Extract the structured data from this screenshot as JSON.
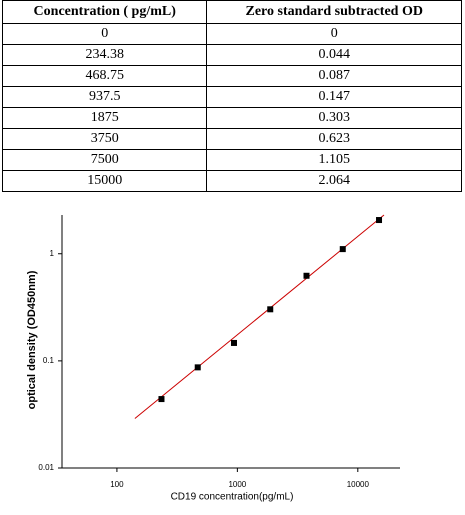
{
  "table": {
    "header": [
      "Concentration ( pg/mL)",
      "Zero standard subtracted OD"
    ],
    "rows": [
      [
        0,
        0
      ],
      [
        234.38,
        0.044
      ],
      [
        468.75,
        0.087
      ],
      [
        937.5,
        0.147
      ],
      [
        1875,
        0.303
      ],
      [
        3750,
        0.623
      ],
      [
        7500,
        1.105
      ],
      [
        15000,
        2.064
      ]
    ]
  },
  "chart_data": {
    "type": "scatter",
    "x_label": "CD19  concentration(pg/mL)",
    "y_label": "optical density (OD450nm)",
    "x": [
      234.38,
      468.75,
      937.5,
      1875,
      3750,
      7500,
      15000
    ],
    "values": [
      0.044,
      0.087,
      0.147,
      0.303,
      0.623,
      1.105,
      2.064
    ],
    "color": "#000000",
    "fit_line": {
      "x": [
        141,
        16500
      ],
      "values": [
        0.029,
        2.3
      ],
      "color": "#cc0000"
    },
    "log_x": true,
    "log_y": true,
    "xlim": [
      35,
      22400
    ],
    "ylim": [
      0.01,
      2.3
    ],
    "xticks": [
      100,
      1000,
      10000
    ],
    "yticks": [
      0.01,
      0.1,
      1
    ]
  }
}
